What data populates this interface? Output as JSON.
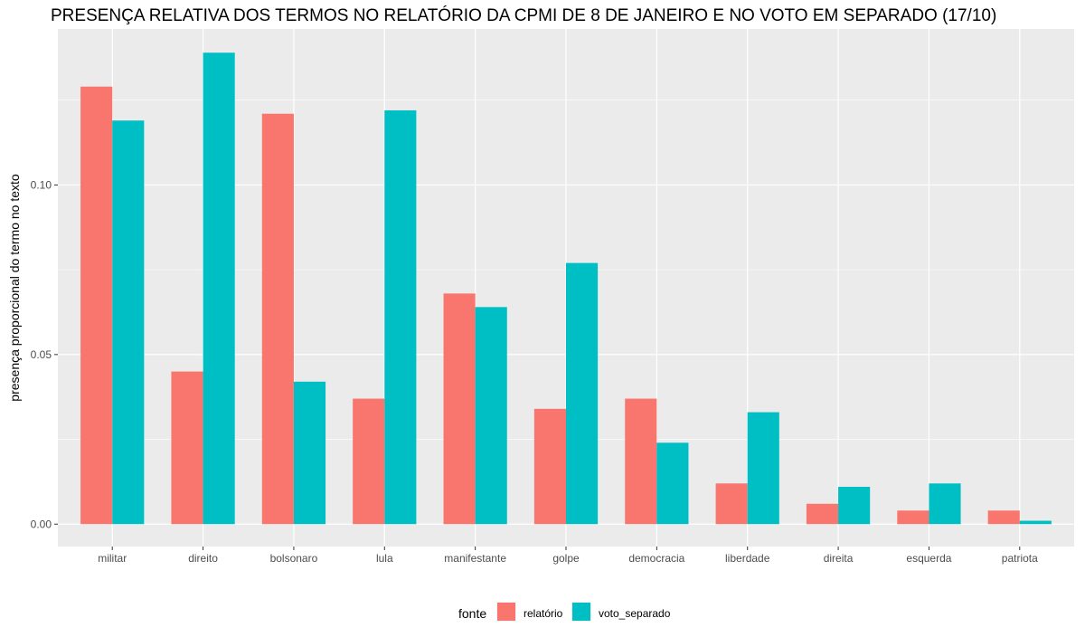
{
  "chart_data": {
    "type": "bar",
    "title": "PRESENÇA RELATIVA DOS TERMOS NO RELATÓRIO DA CPMI DE 8 DE JANEIRO E NO VOTO EM SEPARADO (17/10)",
    "xlabel": "",
    "ylabel": "presença proporcional do termo no texto",
    "categories": [
      "militar",
      "direito",
      "bolsonaro",
      "lula",
      "manifestante",
      "golpe",
      "democracia",
      "liberdade",
      "direita",
      "esquerda",
      "patriota"
    ],
    "series": [
      {
        "name": "relatório",
        "color": "#F8766D",
        "values": [
          0.129,
          0.045,
          0.121,
          0.037,
          0.068,
          0.034,
          0.037,
          0.012,
          0.006,
          0.004,
          0.004
        ]
      },
      {
        "name": "voto_separado",
        "color": "#00BFC4",
        "values": [
          0.119,
          0.139,
          0.042,
          0.122,
          0.064,
          0.077,
          0.024,
          0.033,
          0.011,
          0.012,
          0.001
        ]
      }
    ],
    "ylim": [
      -0.0066,
      0.146
    ],
    "yticks": [
      0.0,
      0.05,
      0.1
    ],
    "ytick_labels": [
      "0.00",
      "0.05",
      "0.10"
    ],
    "grid": true,
    "legend": {
      "title": "fonte",
      "position": "bottom"
    },
    "panel_color": "#EBEBEB",
    "grid_color": "#FFFFFF"
  }
}
